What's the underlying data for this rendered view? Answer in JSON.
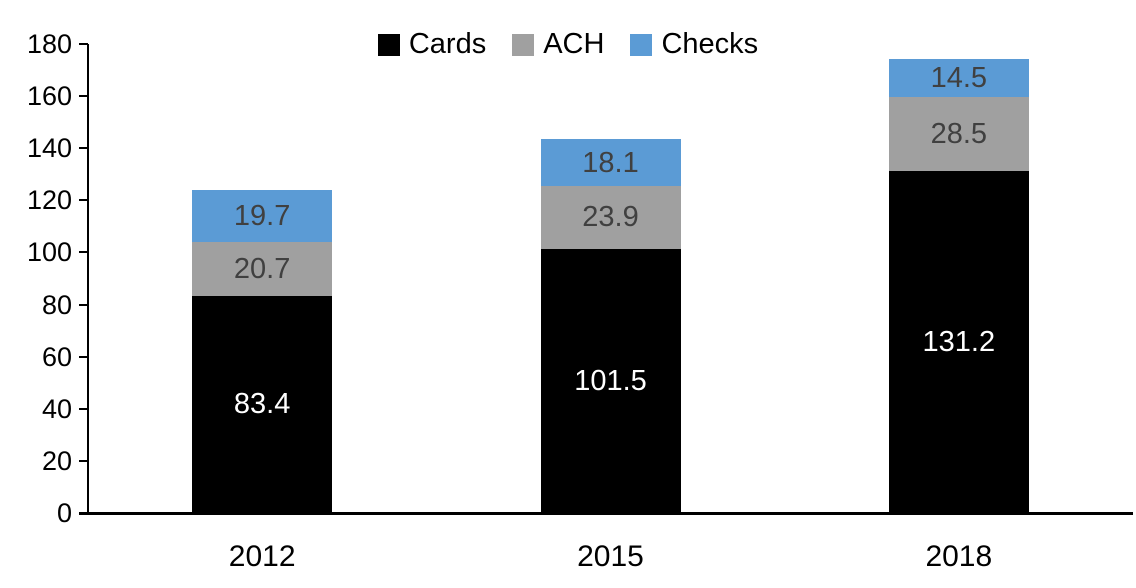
{
  "chart_data": {
    "type": "bar",
    "stacked": true,
    "title": "",
    "categories": [
      "2012",
      "2015",
      "2018"
    ],
    "series": [
      {
        "name": "Cards",
        "color": "#000000",
        "label_color": "#ffffff",
        "values": [
          83.4,
          101.5,
          131.2
        ]
      },
      {
        "name": "ACH",
        "color": "#a0a0a0",
        "label_color": "#404040",
        "values": [
          20.7,
          23.9,
          28.5
        ]
      },
      {
        "name": "Checks",
        "color": "#5b9bd5",
        "label_color": "#404040",
        "values": [
          19.7,
          18.1,
          14.5
        ]
      }
    ],
    "xlabel": "",
    "ylabel": "",
    "ylim": [
      0,
      180
    ],
    "ytick_step": 20,
    "ytick_labels": [
      "0",
      "20",
      "40",
      "60",
      "80",
      "100",
      "120",
      "140",
      "160",
      "180"
    ],
    "grid": false,
    "legend_position": "top",
    "axis_color": "#000000",
    "background_color": "#ffffff"
  }
}
